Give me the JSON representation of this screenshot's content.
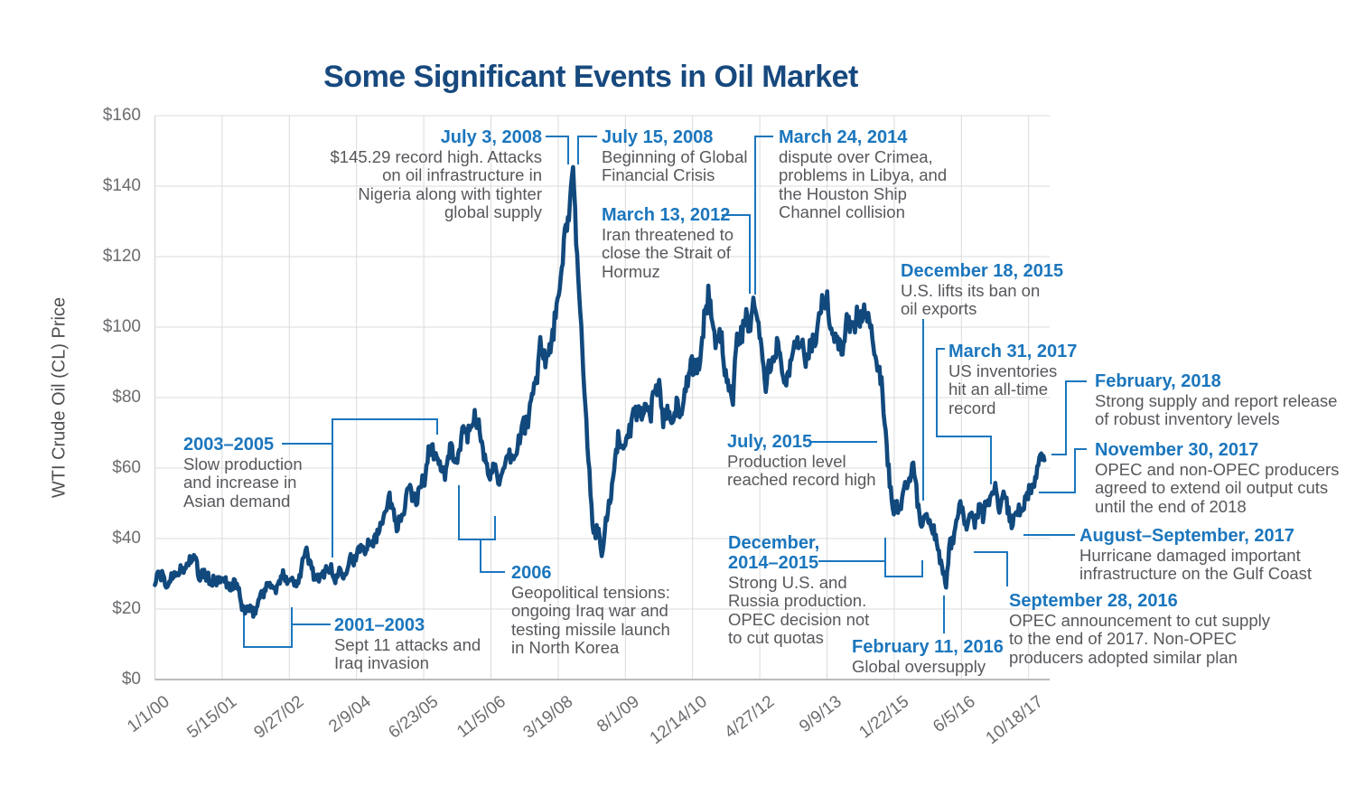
{
  "colors": {
    "line_navy": "#11497D",
    "annotation_blue": "#1B76BD",
    "title_navy": "#17497E",
    "body_gray": "#57585C",
    "tick_gray": "#6B6C6F",
    "ylabel_gray": "#4E4F52",
    "gridline": "#DADBDD",
    "axis": "#B9BBBD"
  },
  "chart_data": {
    "type": "line",
    "title": "Some Significant Events in Oil Market",
    "xlabel": "",
    "ylabel": "WTI Crude Oil (CL) Price",
    "ylim": [
      0,
      160
    ],
    "grid": true,
    "legend": false,
    "y_tick_labels": [
      "$0",
      "$20",
      "$40",
      "$60",
      "$80",
      "$100",
      "$120",
      "$140",
      "$160"
    ],
    "x_tick_labels": [
      "1/1/00",
      "5/15/01",
      "9/27/02",
      "2/9/04",
      "6/23/05",
      "11/5/06",
      "3/19/08",
      "8/1/09",
      "12/14/10",
      "4/27/12",
      "9/9/13",
      "1/22/15",
      "6/5/16",
      "10/18/17"
    ],
    "series": [
      {
        "name": "WTI Crude Oil (CL) Price (USD/bbl)",
        "start": "2000-01",
        "interval": "monthly",
        "values": [
          27.2,
          29.4,
          29.9,
          25.7,
          28.8,
          31.8,
          29.7,
          31.3,
          33.9,
          33.1,
          34.4,
          28.4,
          29.6,
          29.6,
          27.2,
          27.4,
          28.6,
          27.6,
          26.4,
          27.4,
          26.2,
          22.2,
          19.7,
          19.3,
          19.7,
          20.7,
          24.4,
          26.3,
          27.0,
          25.5,
          26.9,
          28.4,
          29.7,
          28.9,
          26.3,
          29.4,
          33.0,
          35.8,
          33.5,
          28.2,
          28.1,
          30.7,
          30.8,
          31.6,
          28.3,
          30.3,
          31.1,
          32.2,
          34.3,
          34.7,
          36.8,
          36.7,
          40.3,
          38.0,
          40.8,
          44.9,
          46.0,
          53.3,
          48.5,
          43.3,
          46.8,
          48.0,
          54.3,
          53.0,
          49.8,
          56.3,
          58.7,
          65.0,
          65.5,
          62.4,
          58.3,
          59.4,
          65.5,
          61.6,
          62.9,
          69.7,
          70.9,
          70.9,
          74.4,
          73.1,
          63.9,
          58.9,
          59.4,
          62.0,
          54.6,
          59.3,
          60.6,
          64.0,
          63.5,
          67.5,
          74.1,
          72.4,
          79.9,
          86.2,
          94.6,
          91.7,
          93.0,
          95.4,
          105.5,
          112.6,
          125.4,
          133.9,
          145.3,
          116.7,
          103.8,
          76.7,
          57.3,
          41.0,
          41.7,
          35.0,
          45.0,
          49.8,
          59.0,
          69.6,
          64.1,
          71.0,
          69.4,
          75.7,
          78.0,
          74.5,
          78.3,
          76.4,
          81.2,
          84.3,
          73.7,
          75.3,
          76.3,
          76.6,
          75.2,
          81.9,
          84.2,
          89.2,
          89.2,
          88.6,
          102.9,
          109.5,
          100.9,
          96.3,
          97.3,
          86.3,
          85.5,
          79.0,
          97.2,
          98.6,
          100.3,
          102.3,
          107.0,
          103.3,
          94.7,
          82.3,
          87.9,
          94.1,
          94.5,
          89.5,
          86.5,
          87.9,
          94.8,
          95.3,
          93.0,
          92.0,
          94.5,
          95.8,
          104.7,
          106.6,
          107.3,
          100.5,
          93.9,
          97.6,
          94.6,
          100.8,
          100.8,
          102.1,
          102.2,
          105.8,
          103.6,
          96.5,
          93.2,
          84.4,
          75.8,
          59.3,
          47.2,
          50.6,
          47.8,
          54.5,
          59.3,
          59.8,
          50.9,
          42.9,
          45.5,
          46.2,
          42.4,
          37.2,
          31.7,
          27.5,
          37.6,
          40.8,
          46.7,
          48.8,
          44.7,
          44.7,
          45.2,
          49.8,
          45.7,
          52.0,
          52.5,
          53.5,
          49.3,
          51.1,
          48.5,
          45.2,
          46.6,
          48.0,
          49.8,
          51.6,
          56.6,
          57.9,
          63.7,
          62.2
        ]
      }
    ],
    "notable_points": {
      "record_high": {
        "date": "July 3, 2008",
        "value": 145.29
      },
      "global_oversupply_low": {
        "date": "February 11, 2016",
        "value": 26.2
      }
    }
  },
  "annotations": {
    "jul3_2008": {
      "heading": "July 3, 2008",
      "body": "$145.29 record high. Attacks\non oil infrastructure in\nNigeria along with tighter\nglobal supply"
    },
    "jul15_2008": {
      "heading": "July 15, 2008",
      "body": "Beginning of Global\nFinancial Crisis"
    },
    "mar13_2012": {
      "heading": "March 13, 2012",
      "body": "Iran threatened to\nclose the Strait of\nHormuz"
    },
    "mar24_2014": {
      "heading": "March 24, 2014",
      "body": "dispute over Crimea,\nproblems in Libya, and\nthe Houston Ship\nChannel collision"
    },
    "dec18_2015": {
      "heading": "December 18, 2015",
      "body": "U.S. lifts its ban on\noil exports"
    },
    "mar31_2017": {
      "heading": "March 31, 2017",
      "body": "US inventories\nhit an all-time\nrecord"
    },
    "feb_2018": {
      "heading": "February, 2018",
      "body": "Strong supply and report release\nof robust inventory levels"
    },
    "nov30_2017": {
      "heading": "November 30, 2017",
      "body": "OPEC and non-OPEC producers\nagreed to extend oil output cuts\nuntil the end of 2018"
    },
    "augsep_2017": {
      "heading": "August–September, 2017",
      "body": "Hurricane damaged important\ninfrastructure on the Gulf Coast"
    },
    "sep28_2016": {
      "heading": "September 28, 2016",
      "body": "OPEC announcement to cut supply\nto the end of 2017. Non-OPEC\nproducers adopted similar plan"
    },
    "jul_2015": {
      "heading": "July, 2015",
      "body": "Production level\nreached record high"
    },
    "dec_2014_2015": {
      "heading": "December,\n2014–2015",
      "body": "Strong U.S. and\nRussia production.\nOPEC decision not\nto cut quotas"
    },
    "feb11_2016": {
      "heading": "February 11, 2016",
      "body": "Global oversupply"
    },
    "y2003_2005": {
      "heading": "2003–2005",
      "body": "Slow production\nand increase in\nAsian demand"
    },
    "y2001_2003": {
      "heading": "2001–2003",
      "body": "Sept 11 attacks and\nIraq invasion"
    },
    "y2006": {
      "heading": "2006",
      "body": "Geopolitical tensions:\nongoing Iraq war and\ntesting missile launch\nin North Korea"
    }
  }
}
